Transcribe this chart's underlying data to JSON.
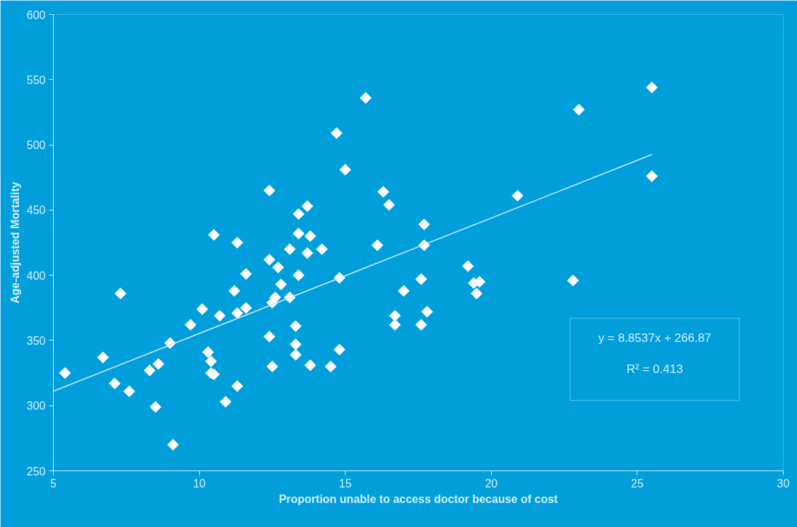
{
  "chart_data": {
    "type": "scatter",
    "xlabel": "Proportion unable to access doctor because of cost",
    "ylabel": "Age-adjusted Mortality",
    "xlim": [
      5,
      30
    ],
    "ylim": [
      250,
      600
    ],
    "xticks": [
      5,
      10,
      15,
      20,
      25,
      30
    ],
    "yticks": [
      250,
      300,
      350,
      400,
      450,
      500,
      550,
      600
    ],
    "grid": false,
    "marker": "diamond",
    "annotations": [
      "y = 8.8537x + 266.87",
      "R² = 0.413"
    ],
    "series": [
      {
        "color": "#ffffff",
        "x": [
          5.4,
          6.7,
          7.1,
          7.3,
          7.6,
          8.3,
          8.5,
          8.6,
          9.0,
          9.1,
          9.7,
          10.1,
          10.3,
          10.4,
          10.4,
          10.5,
          10.5,
          10.7,
          10.9,
          11.2,
          11.3,
          11.3,
          11.3,
          11.6,
          11.6,
          12.4,
          12.4,
          12.4,
          12.5,
          12.5,
          12.6,
          12.7,
          12.8,
          13.1,
          13.1,
          13.3,
          13.3,
          13.3,
          13.4,
          13.4,
          13.4,
          13.7,
          13.7,
          13.8,
          13.8,
          14.2,
          14.5,
          14.7,
          14.8,
          14.8,
          15.0,
          15.7,
          16.1,
          16.3,
          16.5,
          16.7,
          16.7,
          17.0,
          17.6,
          17.6,
          17.7,
          17.7,
          17.8,
          19.2,
          19.4,
          19.5,
          19.6,
          20.9,
          22.8,
          23.0,
          25.5,
          25.5
        ],
        "values": [
          325,
          337,
          317,
          386,
          311,
          327,
          299,
          332,
          348,
          270,
          362,
          374,
          341,
          334,
          325,
          324,
          431,
          369,
          303,
          388,
          425,
          315,
          371,
          375,
          401,
          465,
          412,
          353,
          379,
          330,
          383,
          406,
          393,
          420,
          383,
          361,
          347,
          339,
          447,
          432,
          400,
          453,
          417,
          331,
          430,
          420,
          330,
          509,
          343,
          398,
          481,
          536,
          423,
          464,
          454,
          369,
          362,
          388,
          362,
          397,
          439,
          423,
          372,
          407,
          394,
          386,
          395,
          461,
          396,
          527,
          544,
          476
        ]
      },
      {
        "type": "line",
        "color": "#cfeaf8",
        "marker": "none",
        "x": [
          5,
          25.5
        ],
        "values": [
          311.1,
          492.6
        ]
      }
    ]
  }
}
